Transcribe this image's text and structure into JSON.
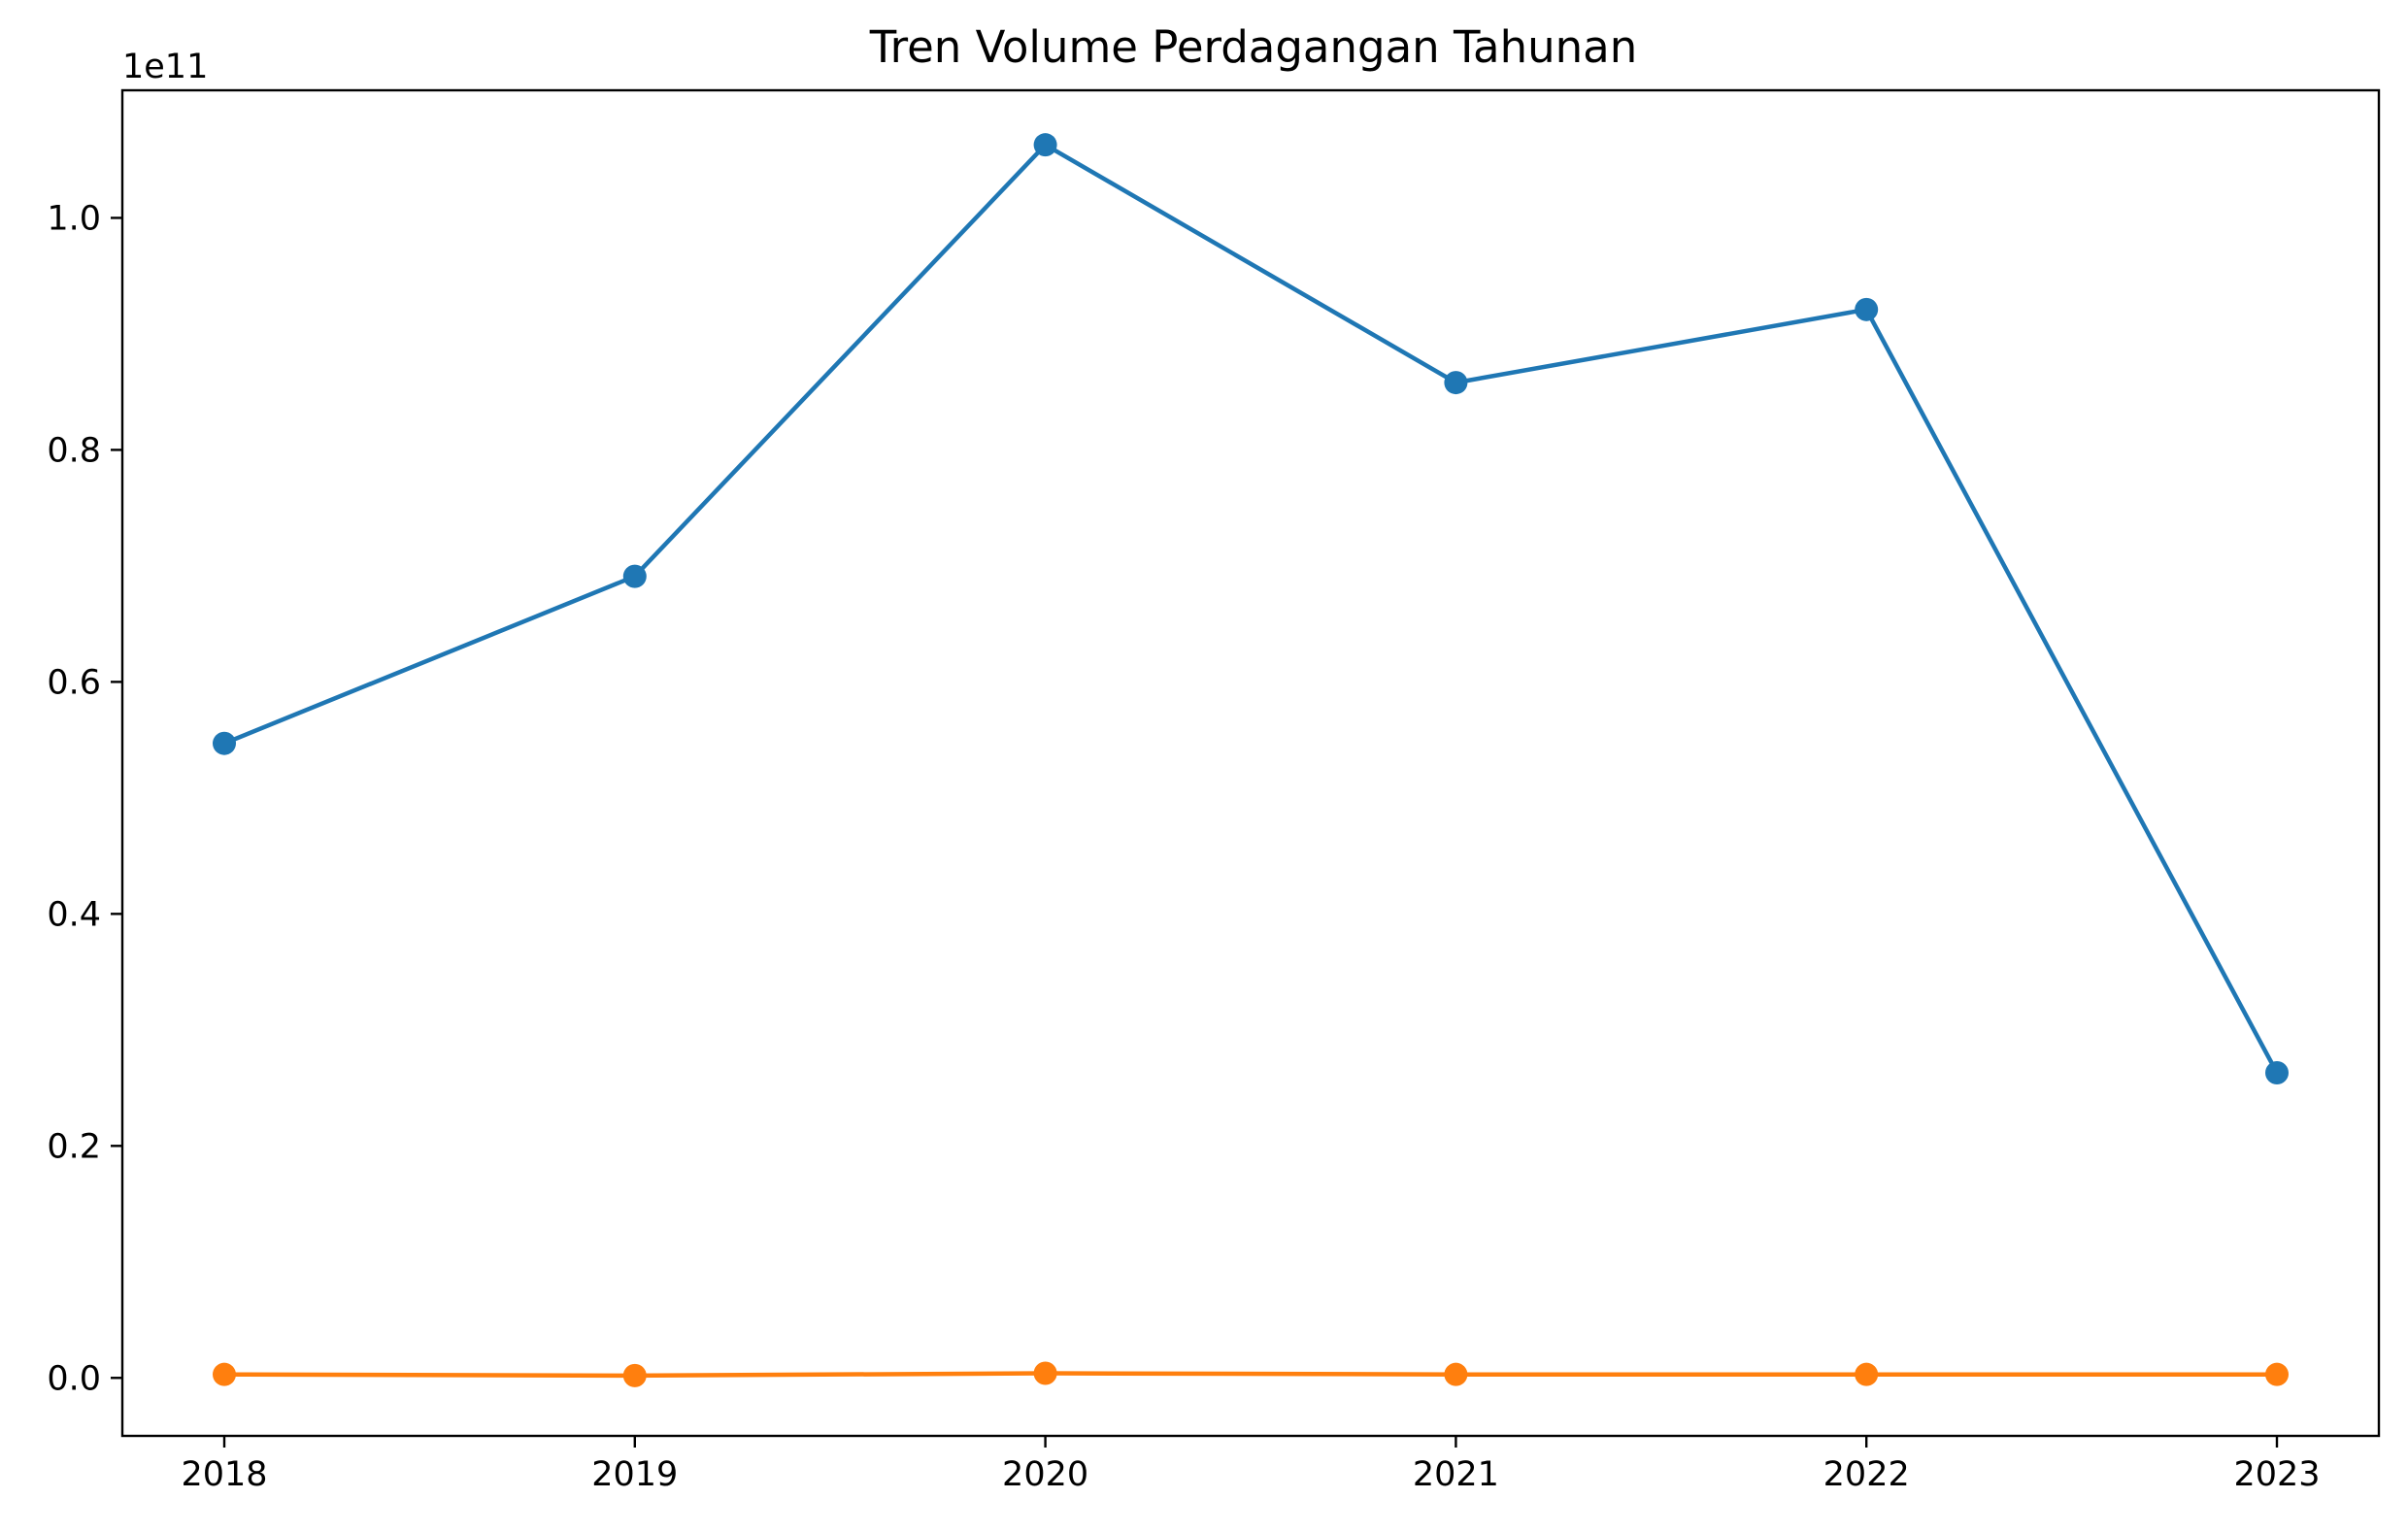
{
  "chart_data": {
    "type": "line",
    "title": "Tren Volume Perdagangan Tahunan",
    "xlabel": "",
    "ylabel": "",
    "y_offset_label": "1e11",
    "categories": [
      "2018",
      "2019",
      "2020",
      "2021",
      "2022",
      "2023"
    ],
    "ylim": [
      -5000000000.0,
      111000000000.0
    ],
    "yticks": [
      0,
      20000000000.0,
      40000000000.0,
      60000000000.0,
      80000000000.0,
      100000000000.0
    ],
    "ytick_labels": [
      "0.0",
      "0.2",
      "0.4",
      "0.6",
      "0.8",
      "1.0"
    ],
    "grid": false,
    "legend": "none",
    "series": [
      {
        "color": "#1f77b4",
        "marker": "circle",
        "values": [
          54700000000,
          69100000000,
          106300000000,
          85800000000,
          92100000000,
          26300000000
        ]
      },
      {
        "color": "#ff7f0e",
        "marker": "circle",
        "values": [
          300000000,
          200000000,
          400000000,
          300000000,
          300000000,
          300000000
        ]
      }
    ]
  }
}
